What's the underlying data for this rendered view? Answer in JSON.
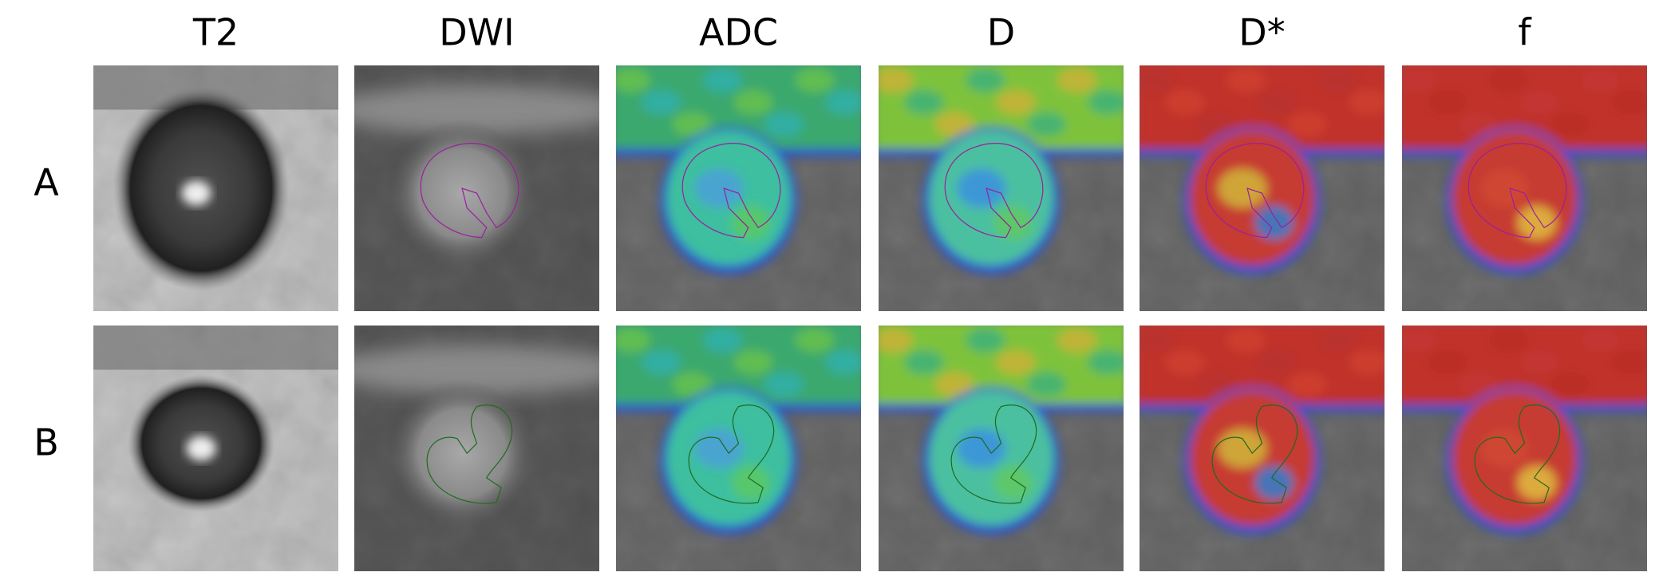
{
  "columns": [
    "T2",
    "DWI",
    "ADC",
    "D",
    "D*",
    "f"
  ],
  "rows": [
    "A",
    "B"
  ]
}
